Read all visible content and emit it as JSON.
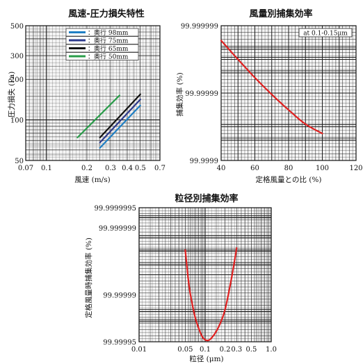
{
  "chart_data": [
    {
      "id": "pressure",
      "type": "line",
      "title": "風速-圧力損失特性",
      "xlabel": "風速 (m/s)",
      "ylabel": "圧力損失 (Pa)",
      "x_scale": "log",
      "y_scale": "log",
      "xlim": [
        0.07,
        0.7
      ],
      "ylim": [
        50,
        500
      ],
      "x_ticks": [
        "0.07",
        "0.1",
        "0.2",
        "0.3",
        "0.4",
        "0.5",
        "0.7"
      ],
      "x_tick_values": [
        0.07,
        0.1,
        0.2,
        0.3,
        0.4,
        0.5,
        0.7
      ],
      "y_ticks": [
        "50",
        "100",
        "200",
        "300",
        "500"
      ],
      "y_tick_values": [
        50,
        100,
        200,
        300,
        500
      ],
      "grid": true,
      "legend": "top-right",
      "series": [
        {
          "name": "：奥行 98mm",
          "color": "#1f7fc4",
          "x": [
            0.25,
            0.5
          ],
          "y": [
            62,
            128
          ]
        },
        {
          "name": "：奥行 75mm",
          "color": "#2c3a8c",
          "x": [
            0.25,
            0.5
          ],
          "y": [
            68,
            142
          ]
        },
        {
          "name": "：奥行 65mm",
          "color": "#111111",
          "x": [
            0.25,
            0.5
          ],
          "y": [
            74,
            155
          ]
        },
        {
          "name": "：奥行 50mm",
          "color": "#2a9d4a",
          "x": [
            0.17,
            0.35
          ],
          "y": [
            74,
            152
          ]
        }
      ]
    },
    {
      "id": "wind",
      "type": "line",
      "title": "風量別捕集効率",
      "annotation": "at 0.1-0.15μm",
      "xlabel": "定格風量との比 (%)",
      "ylabel": "捕集効率 (%)",
      "xlim": [
        40,
        120
      ],
      "x_ticks": [
        "40",
        "60",
        "80",
        "100",
        "120"
      ],
      "x_tick_values": [
        40,
        60,
        80,
        100,
        120
      ],
      "y_ticks": [
        "99.9999",
        "99.99999",
        "99.999999"
      ],
      "y_tick_values": [
        0,
        1,
        2
      ],
      "y_scale": "penetration decade",
      "grid": true,
      "series": [
        {
          "name": "",
          "color": "#e02020",
          "x": [
            40,
            50,
            60,
            70,
            80,
            90,
            100
          ],
          "y": [
            1.78,
            1.5,
            1.23,
            0.98,
            0.75,
            0.54,
            0.4
          ]
        }
      ]
    },
    {
      "id": "particle",
      "type": "line",
      "title": "粒径別捕集効率",
      "xlabel": "粒径 (μm)",
      "ylabel": "定格風量時捕集効率 (%)",
      "x_scale": "log",
      "xlim": [
        0.01,
        1.0
      ],
      "x_ticks": [
        "0.01",
        "0.05",
        "0.1",
        "0.2",
        "0.3",
        "0.5",
        "1.0"
      ],
      "x_tick_values": [
        0.01,
        0.05,
        0.1,
        0.2,
        0.3,
        0.5,
        1.0
      ],
      "y_ticks": [
        "99.99995",
        "99.99999",
        "99.999999",
        "99.9999995"
      ],
      "y_tick_values": [
        0,
        0.7,
        1.7,
        2.0
      ],
      "y_scale": "penetration decade",
      "grid": true,
      "series": [
        {
          "name": "",
          "color": "#e02020",
          "x": [
            0.05,
            0.055,
            0.06,
            0.07,
            0.08,
            0.09,
            0.1,
            0.11,
            0.12,
            0.14,
            0.17,
            0.2,
            0.24,
            0.28,
            0.3
          ],
          "y": [
            1.37,
            0.97,
            0.7,
            0.38,
            0.2,
            0.08,
            0.03,
            0.02,
            0.04,
            0.12,
            0.28,
            0.48,
            0.85,
            1.22,
            1.4
          ]
        }
      ]
    }
  ]
}
